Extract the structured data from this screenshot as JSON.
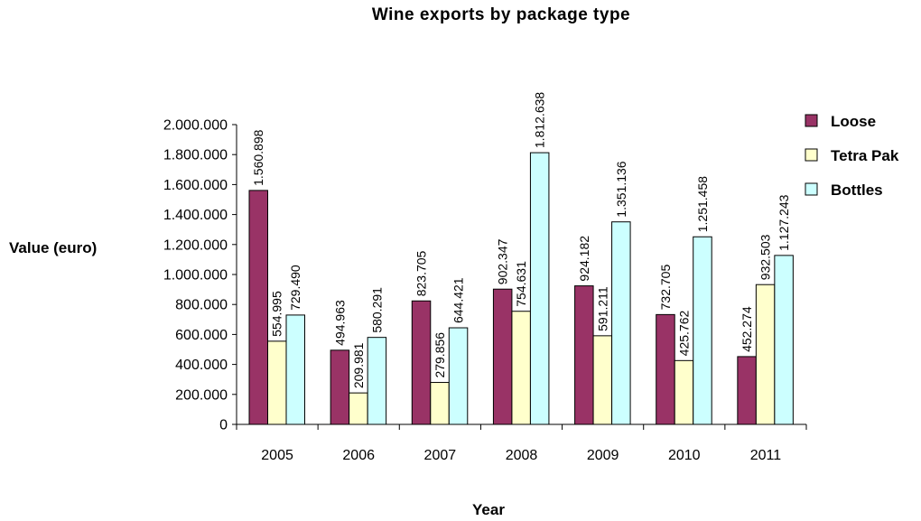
{
  "chart_data": {
    "type": "bar",
    "title": "Wine exports by package type",
    "xlabel": "Year",
    "ylabel": "Value (euro)",
    "ylim": [
      0,
      2000000
    ],
    "y_ticks": [
      0,
      200000,
      400000,
      600000,
      800000,
      1000000,
      1200000,
      1400000,
      1600000,
      1800000,
      2000000
    ],
    "y_tick_labels": [
      "0",
      "200.000",
      "400.000",
      "600.000",
      "800.000",
      "1.000.000",
      "1.200.000",
      "1.400.000",
      "1.600.000",
      "1.800.000",
      "2.000.000"
    ],
    "grid": false,
    "legend_position": "top-right",
    "categories": [
      "2005",
      "2006",
      "2007",
      "2008",
      "2009",
      "2010",
      "2011"
    ],
    "series": [
      {
        "name": "Loose",
        "color": "#993366",
        "values": [
          1560898,
          494963,
          823705,
          902347,
          924182,
          732705,
          452274
        ],
        "labels": [
          "1.560.898",
          "494.963",
          "823.705",
          "902.347",
          "924.182",
          "732.705",
          "452.274"
        ]
      },
      {
        "name": "Tetra Pak",
        "color": "#FFFFCC",
        "values": [
          554995,
          209981,
          279856,
          754631,
          591211,
          425762,
          932503
        ],
        "labels": [
          "554.995",
          "209.981",
          "279.856",
          "754.631",
          "591.211",
          "425.762",
          "932.503"
        ]
      },
      {
        "name": "Bottles",
        "color": "#CCFFFF",
        "values": [
          729490,
          580291,
          644421,
          1812638,
          1351136,
          1251458,
          1127243
        ],
        "labels": [
          "729.490",
          "580.291",
          "644.421",
          "1.812.638",
          "1.351.136",
          "1.251.458",
          "1.127.243"
        ]
      }
    ]
  }
}
